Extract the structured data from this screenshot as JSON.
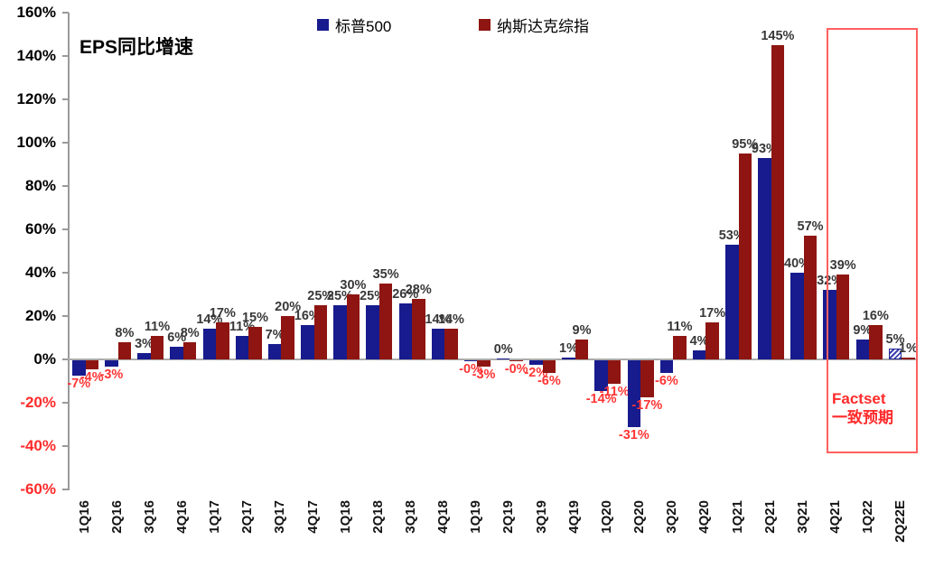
{
  "chart_data": {
    "type": "bar",
    "title": "EPS同比增速",
    "categories": [
      "1Q16",
      "2Q16",
      "3Q16",
      "4Q16",
      "1Q17",
      "2Q17",
      "3Q17",
      "4Q17",
      "1Q18",
      "2Q18",
      "3Q18",
      "4Q18",
      "1Q19",
      "2Q19",
      "3Q19",
      "4Q19",
      "1Q20",
      "2Q20",
      "3Q20",
      "4Q20",
      "1Q21",
      "2Q21",
      "3Q21",
      "4Q21",
      "1Q22",
      "2Q22E"
    ],
    "series": [
      {
        "key": "sp500",
        "name": "标普500",
        "color": "#171b8d",
        "values": [
          -7,
          -3,
          3,
          6,
          14,
          11,
          7,
          16,
          25,
          25,
          26,
          14,
          -0.4,
          0.4,
          -2,
          1,
          -14,
          -31,
          -6,
          4,
          53,
          93,
          40,
          32,
          9,
          5
        ],
        "labels": [
          "-7%",
          "-3%",
          "3%",
          "6%",
          "14%",
          "11%",
          "7%",
          "16%",
          "25%",
          "25%",
          "26%",
          "14%",
          "-0%",
          "0%",
          "-2%",
          "1%",
          "-14%",
          "-31%",
          "-6%",
          "4%",
          "53%",
          "93%",
          "40%",
          "32%",
          "9%",
          "5%"
        ],
        "hatched_categories": [
          "2Q22E"
        ]
      },
      {
        "key": "nasdaq",
        "name": "纳斯达克综指",
        "color": "#8e1511",
        "values": [
          -4,
          8,
          11,
          8,
          17,
          15,
          20,
          25,
          30,
          35,
          28,
          14,
          -3,
          -0.4,
          -6,
          9,
          -11,
          -17,
          11,
          17,
          95,
          145,
          57,
          39,
          16,
          1
        ],
        "labels": [
          "-4%",
          "8%",
          "11%",
          "8%",
          "17%",
          "15%",
          "20%",
          "25%",
          "30%",
          "35%",
          "28%",
          "14%",
          "-3%",
          "-0%",
          "-6%",
          "9%",
          "-11%",
          "-17%",
          "11%",
          "17%",
          "95%",
          "145%",
          "57%",
          "39%",
          "16%",
          "1%"
        ],
        "hatched_categories": []
      }
    ],
    "ylim": [
      -60,
      160
    ],
    "ytick_values": [
      160,
      140,
      120,
      100,
      80,
      60,
      40,
      20,
      0,
      -20,
      -40,
      -60
    ],
    "ytick_labels": [
      "160%",
      "140%",
      "120%",
      "100%",
      "80%",
      "60%",
      "40%",
      "20%",
      "0%",
      "-20%",
      "-40%",
      "-60%"
    ],
    "grid": "zero-line-only",
    "legend_position": "top",
    "positive_label_color": "#383838",
    "negative_label_color": "#ff3535",
    "negative_ytick_color": "#ff2b2b",
    "annotation_box": {
      "line1": "Factset",
      "line2": "一致预期",
      "border_color": "#ff6060",
      "text_color": "#ff2b2b",
      "covers_categories": [
        "4Q21",
        "1Q22",
        "2Q22E"
      ]
    }
  }
}
